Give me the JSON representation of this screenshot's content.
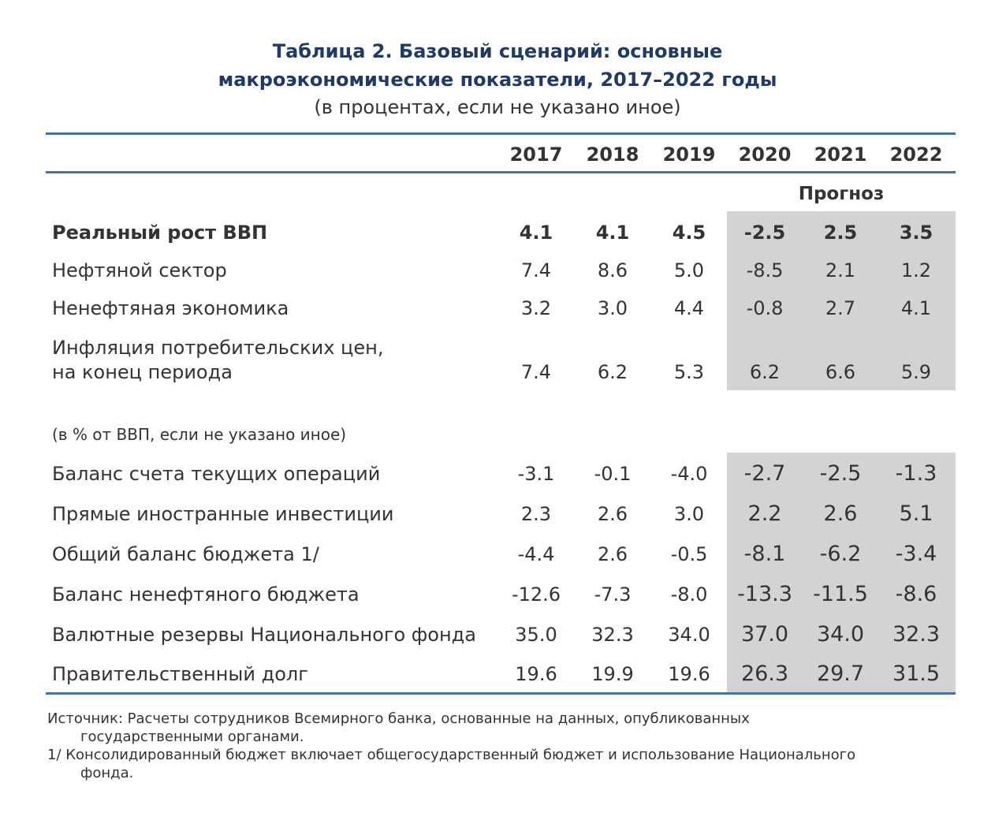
{
  "title_line1": "Таблица 2. Базовый сценарий: основные",
  "title_line2": "макроэкономические показатели, 2017–2022 годы",
  "subtitle": "(в процентах, если не указано иное)",
  "years": [
    "2017",
    "2018",
    "2019",
    "2020",
    "2021",
    "2022"
  ],
  "forecast_label": "Прогноз",
  "rows_top": [
    {
      "label": "Реальный рост ВВП",
      "bold": true,
      "values": [
        "4.1",
        "4.1",
        "4.5",
        "-2.5",
        "2.5",
        "3.5"
      ]
    },
    {
      "label": "Нефтяной сектор",
      "values": [
        "7.4",
        "8.6",
        "5.0",
        "-8.5",
        "2.1",
        "1.2"
      ]
    },
    {
      "label": "Ненефтяная экономика",
      "values": [
        "3.2",
        "3.0",
        "4.4",
        "-0.8",
        "2.7",
        "4.1"
      ]
    },
    {
      "label_line1": "Инфляция потребительских цен,",
      "label_line2": "на конец периода",
      "values": [
        "7.4",
        "6.2",
        "5.3",
        "6.2",
        "6.6",
        "5.9"
      ]
    }
  ],
  "section_label": "(в % от ВВП, если не указано иное)",
  "rows_bottom": [
    {
      "label": "Баланс счета текущих операций",
      "values": [
        "-3.1",
        "-0.1",
        "-4.0",
        "-2.7",
        "-2.5",
        "-1.3"
      ]
    },
    {
      "label": "Прямые иностранные инвестиции",
      "values": [
        "2.3",
        "2.6",
        "3.0",
        "2.2",
        "2.6",
        "5.1"
      ]
    },
    {
      "label": "Общий баланс бюджета 1/",
      "values": [
        "-4.4",
        "2.6",
        "-0.5",
        "-8.1",
        "-6.2",
        "-3.4"
      ]
    },
    {
      "label": "Баланс ненефтяного бюджета",
      "values": [
        "-12.6",
        "-7.3",
        "-8.0",
        "-13.3",
        "-11.5",
        "-8.6"
      ]
    },
    {
      "label": "Валютные резервы Национального фонда",
      "values": [
        "35.0",
        "32.3",
        "34.0",
        "37.0",
        "34.0",
        "32.3"
      ]
    },
    {
      "label": "Правительственный долг",
      "values": [
        "19.6",
        "19.9",
        "19.6",
        "26.3",
        "29.7",
        "31.5"
      ]
    }
  ],
  "notes": {
    "source_line1": "Источник: Расчеты сотрудников Всемирного банка, основанные на данных, опубликованных",
    "source_line2": "государственными органами.",
    "footnote_line1": "1/ Консолидированный бюджет включает общегосударственный бюджет и использование Национального",
    "footnote_line2": "фонда."
  },
  "colors": {
    "title": "#1f3a68",
    "rule": "#4472a8",
    "shade": "#d3d3d3"
  }
}
